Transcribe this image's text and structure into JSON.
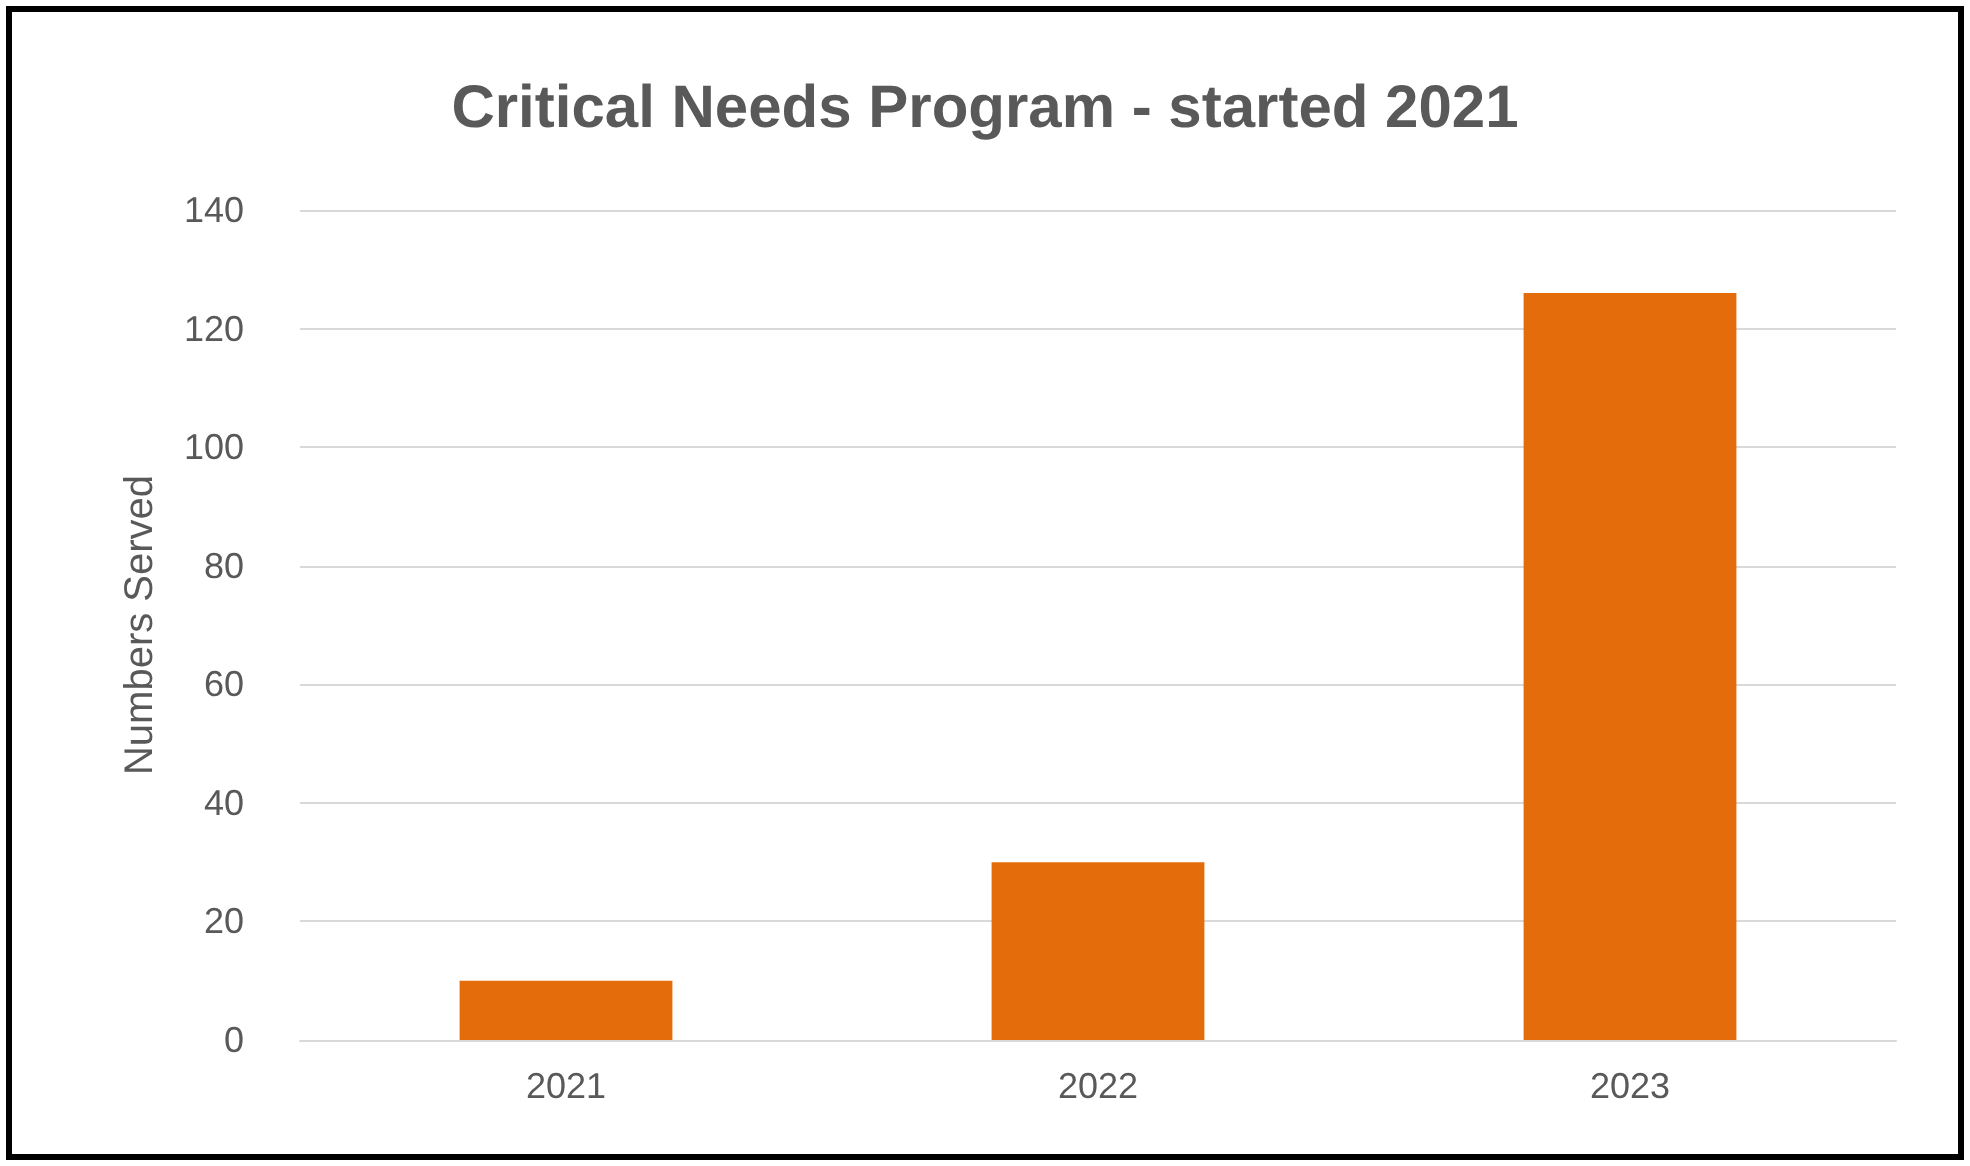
{
  "chart_data": {
    "type": "bar",
    "title": "Critical Needs Program - started 2021",
    "ylabel": "Numbers Served",
    "categories": [
      "2021",
      "2022",
      "2023"
    ],
    "values": [
      10,
      30,
      126
    ],
    "color": "#e46c0a",
    "ylim": [
      0,
      140
    ],
    "yticks": [
      0,
      20,
      40,
      60,
      80,
      100,
      120,
      140
    ],
    "grid": "y"
  }
}
